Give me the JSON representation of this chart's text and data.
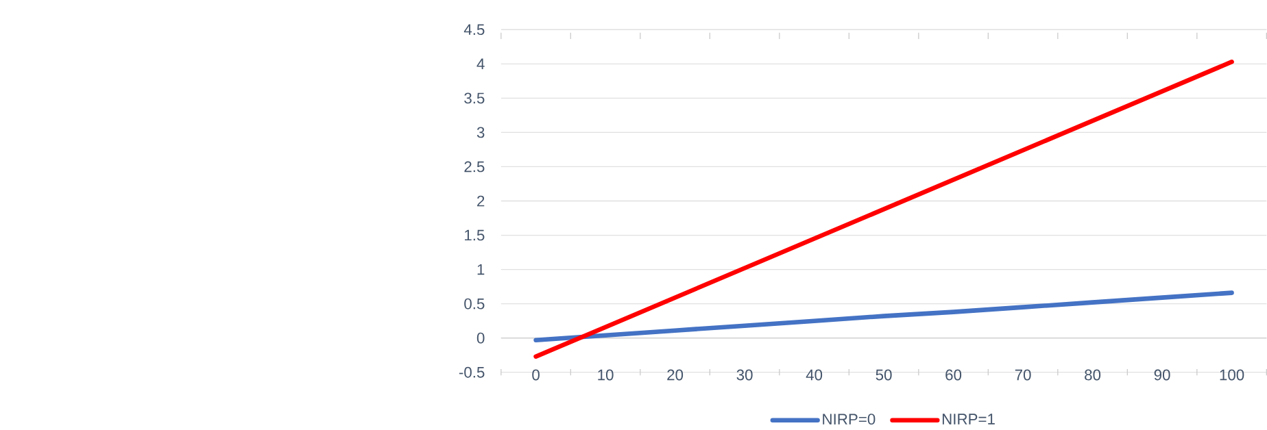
{
  "chart_data": {
    "type": "line",
    "categories": [
      "0",
      "10",
      "20",
      "30",
      "40",
      "50",
      "60",
      "70",
      "80",
      "90",
      "100"
    ],
    "series": [
      {
        "name": "NIRP=0",
        "color": "#4472c4",
        "values": [
          -0.03,
          0.04,
          0.11,
          0.18,
          0.25,
          0.32,
          0.38,
          0.45,
          0.52,
          0.59,
          0.66
        ]
      },
      {
        "name": "NIRP=1",
        "color": "#ff0000",
        "values": [
          -0.27,
          0.16,
          0.59,
          1.02,
          1.45,
          1.88,
          2.31,
          2.74,
          3.17,
          3.6,
          4.03
        ]
      }
    ],
    "ylim": [
      -0.5,
      4.5
    ],
    "yticks": [
      -0.5,
      0,
      0.5,
      1,
      1.5,
      2,
      2.5,
      3,
      3.5,
      4,
      4.5
    ],
    "grid": "y",
    "legend": "bottom",
    "marker": "none",
    "line_style": "solid"
  }
}
